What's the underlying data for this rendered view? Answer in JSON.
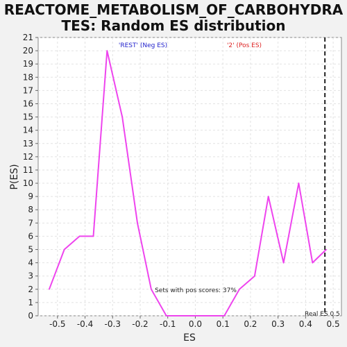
{
  "chart_data": {
    "type": "line",
    "title_line1": "REACTOME_METABOLISM_OF_CARBOHYDRA",
    "title_line2": "TES: Random ES distribution",
    "xlabel": "ES",
    "ylabel": "P(ES)",
    "xlim": [
      -0.57,
      0.53
    ],
    "ylim": [
      0,
      21
    ],
    "xticks": [
      -0.5,
      -0.4,
      -0.3,
      -0.2,
      -0.1,
      0.0,
      0.1,
      0.2,
      0.3,
      0.4,
      0.5
    ],
    "xtick_labels": [
      "-0.5",
      "-0.4",
      "-0.3",
      "-0.2",
      "-0.1",
      "0.0",
      "0.1",
      "0.2",
      "0.3",
      "0.4",
      "0.5"
    ],
    "yticks": [
      0,
      1,
      2,
      3,
      4,
      5,
      6,
      7,
      8,
      9,
      10,
      11,
      12,
      13,
      14,
      15,
      16,
      17,
      18,
      19,
      20,
      21
    ],
    "grid": true,
    "series": [
      {
        "color": "#ee44ee",
        "x": [
          -0.53,
          -0.475,
          -0.42,
          -0.37,
          -0.32,
          -0.265,
          -0.21,
          -0.16,
          -0.105,
          -0.05,
          0.0,
          0.05,
          0.105,
          0.16,
          0.215,
          0.265,
          0.32,
          0.375,
          0.425,
          0.475
        ],
        "y": [
          2,
          5,
          6,
          6,
          20,
          15,
          7,
          2,
          0,
          0,
          0,
          0,
          0,
          2,
          3,
          9,
          4,
          10,
          4,
          5
        ]
      }
    ],
    "real_es": 0.47,
    "annotations": {
      "neg_label": "'REST' (Neg ES)",
      "pos_label": "'2' (Pos ES)",
      "pos_scores": "Sets with pos scores: 37%",
      "real_es_label": "Real ES 0.5"
    },
    "colors": {
      "neg_label": "#2222cc",
      "pos_label": "#dd2222",
      "line": "#ee44ee",
      "real_es_line": "#222222"
    }
  }
}
